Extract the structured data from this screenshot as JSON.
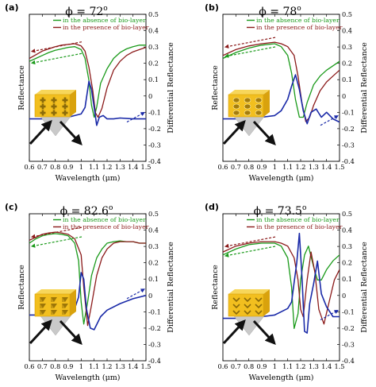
{
  "figure": {
    "panels": [
      {
        "label": "(a)",
        "title_base": "ϕ = 72",
        "title_sup": "o"
      },
      {
        "label": "(b)",
        "title_base": "ϕ = 78",
        "title_sup": "o"
      },
      {
        "label": "(c)",
        "title_base": "ϕ = 82.6",
        "title_sup": "o"
      },
      {
        "label": "(d)",
        "title_base": "ϕ = 73.5",
        "title_sup": "o"
      }
    ]
  },
  "colors": {
    "absence": "#1a9a1a",
    "presence": "#8b1a1a",
    "differential": "#1a2aa8"
  },
  "chart_data": [
    {
      "type": "line",
      "title": "ϕ = 72°",
      "xlabel": "Wavelength (μm)",
      "ylabel": "Reflectance",
      "y2label": "Differential Reflectance",
      "x_ticks": [
        "0.6",
        "0.7",
        "0.8",
        "0.9",
        "1",
        "1.1",
        "1.2",
        "1.3",
        "1.4",
        "1.5"
      ],
      "y2_ticks": [
        "-0.4",
        "-0.3",
        "-0.2",
        "-0.1",
        "0",
        "0.1",
        "0.2",
        "0.3",
        "0.4",
        "0.5"
      ],
      "xlim": [
        0.6,
        1.5
      ],
      "ylim": [
        0,
        1
      ],
      "y2lim": [
        -0.4,
        0.5
      ],
      "legend": [
        "in the absence of bio-layer",
        "in the presence of bio-layer"
      ],
      "series": [
        {
          "name": "in the absence of bio-layer",
          "axis": "left",
          "x": [
            0.6,
            0.65,
            0.7,
            0.75,
            0.8,
            0.85,
            0.9,
            0.95,
            1.0,
            1.03,
            1.06,
            1.08,
            1.1,
            1.12,
            1.15,
            1.2,
            1.25,
            1.3,
            1.35,
            1.4,
            1.45,
            1.5
          ],
          "y": [
            0.68,
            0.7,
            0.72,
            0.74,
            0.755,
            0.765,
            0.775,
            0.78,
            0.76,
            0.7,
            0.55,
            0.38,
            0.3,
            0.37,
            0.53,
            0.63,
            0.7,
            0.74,
            0.765,
            0.78,
            0.79,
            0.79
          ]
        },
        {
          "name": "in the presence of bio-layer",
          "axis": "left",
          "x": [
            0.6,
            0.65,
            0.7,
            0.75,
            0.8,
            0.85,
            0.9,
            0.95,
            1.0,
            1.03,
            1.06,
            1.09,
            1.11,
            1.13,
            1.16,
            1.2,
            1.25,
            1.3,
            1.35,
            1.4,
            1.45,
            1.5
          ],
          "y": [
            0.7,
            0.725,
            0.75,
            0.765,
            0.78,
            0.79,
            0.795,
            0.8,
            0.785,
            0.75,
            0.64,
            0.48,
            0.33,
            0.3,
            0.36,
            0.5,
            0.62,
            0.68,
            0.72,
            0.745,
            0.76,
            0.775
          ]
        },
        {
          "name": "Differential Reflectance",
          "axis": "right",
          "x": [
            0.6,
            0.7,
            0.8,
            0.9,
            0.95,
            1.0,
            1.03,
            1.06,
            1.08,
            1.1,
            1.12,
            1.14,
            1.17,
            1.2,
            1.25,
            1.3,
            1.4,
            1.5
          ],
          "y": [
            -0.14,
            -0.14,
            -0.135,
            -0.13,
            -0.12,
            -0.11,
            -0.07,
            0.09,
            0.04,
            -0.07,
            -0.18,
            -0.13,
            -0.12,
            -0.14,
            -0.14,
            -0.135,
            -0.14,
            -0.14
          ]
        }
      ]
    },
    {
      "type": "line",
      "title": "ϕ = 78°",
      "xlabel": "Wavelength (μm)",
      "ylabel": "Reflectance",
      "y2label": "Differential Reflectance",
      "x_ticks": [
        "0.6",
        "0.7",
        "0.8",
        "0.9",
        "1",
        "1.1",
        "1.2",
        "1.3",
        "1.4",
        "1.5"
      ],
      "y2_ticks": [
        "-0.4",
        "-0.3",
        "-0.2",
        "-0.1",
        "0",
        "0.1",
        "0.2",
        "0.3",
        "0.4",
        "0.5"
      ],
      "xlim": [
        0.6,
        1.5
      ],
      "ylim": [
        0,
        1
      ],
      "y2lim": [
        -0.4,
        0.5
      ],
      "legend": [
        "in the absence of bio-layer",
        "in the presence of bio-layer"
      ],
      "series": [
        {
          "name": "in the absence of bio-layer",
          "axis": "left",
          "x": [
            0.6,
            0.7,
            0.8,
            0.9,
            1.0,
            1.05,
            1.1,
            1.13,
            1.16,
            1.19,
            1.22,
            1.25,
            1.3,
            1.35,
            1.4,
            1.45,
            1.5
          ],
          "y": [
            0.7,
            0.74,
            0.77,
            0.79,
            0.8,
            0.78,
            0.72,
            0.6,
            0.42,
            0.3,
            0.3,
            0.4,
            0.52,
            0.58,
            0.62,
            0.65,
            0.68
          ]
        },
        {
          "name": "in the presence of bio-layer",
          "axis": "left",
          "x": [
            0.6,
            0.7,
            0.8,
            0.9,
            1.0,
            1.05,
            1.1,
            1.15,
            1.18,
            1.21,
            1.24,
            1.27,
            1.3,
            1.35,
            1.4,
            1.45,
            1.5
          ],
          "y": [
            0.72,
            0.76,
            0.785,
            0.8,
            0.81,
            0.8,
            0.78,
            0.72,
            0.58,
            0.4,
            0.27,
            0.3,
            0.38,
            0.48,
            0.54,
            0.58,
            0.62
          ]
        },
        {
          "name": "Differential Reflectance",
          "axis": "right",
          "x": [
            0.6,
            0.7,
            0.8,
            0.9,
            1.0,
            1.05,
            1.1,
            1.13,
            1.16,
            1.19,
            1.22,
            1.25,
            1.28,
            1.32,
            1.36,
            1.4,
            1.45,
            1.5
          ],
          "y": [
            -0.14,
            -0.14,
            -0.135,
            -0.13,
            -0.12,
            -0.09,
            -0.02,
            0.06,
            0.13,
            0.04,
            -0.09,
            -0.17,
            -0.1,
            -0.08,
            -0.13,
            -0.1,
            -0.14,
            -0.16
          ]
        }
      ]
    },
    {
      "type": "line",
      "title": "ϕ = 82.6°",
      "xlabel": "Wavelength (μm)",
      "ylabel": "Reflectance",
      "y2label": "Differential Reflectance",
      "x_ticks": [
        "0.6",
        "0.7",
        "0.8",
        "0.9",
        "1",
        "1.1",
        "1.2",
        "1.3",
        "1.4",
        "1.5"
      ],
      "y2_ticks": [
        "-0.4",
        "-0.3",
        "-0.2",
        "-0.1",
        "0",
        "0.1",
        "0.2",
        "0.3",
        "0.4",
        "0.5"
      ],
      "xlim": [
        0.6,
        1.5
      ],
      "ylim": [
        0,
        1
      ],
      "y2lim": [
        -0.4,
        0.5
      ],
      "legend": [
        "in the absence of bio-layer",
        "in the presence of bio-layer"
      ],
      "series": [
        {
          "name": "in the absence of bio-layer",
          "axis": "left",
          "x": [
            0.6,
            0.65,
            0.7,
            0.75,
            0.8,
            0.85,
            0.9,
            0.95,
            0.98,
            1.0,
            1.02,
            1.05,
            1.08,
            1.12,
            1.16,
            1.2,
            1.25,
            1.3,
            1.35,
            1.4,
            1.45,
            1.5
          ],
          "y": [
            0.8,
            0.83,
            0.85,
            0.86,
            0.865,
            0.86,
            0.85,
            0.8,
            0.68,
            0.4,
            0.25,
            0.4,
            0.58,
            0.7,
            0.76,
            0.8,
            0.81,
            0.815,
            0.81,
            0.81,
            0.8,
            0.8
          ]
        },
        {
          "name": "in the presence of bio-layer",
          "axis": "left",
          "x": [
            0.6,
            0.65,
            0.7,
            0.75,
            0.8,
            0.85,
            0.9,
            0.95,
            1.0,
            1.02,
            1.05,
            1.08,
            1.12,
            1.16,
            1.2,
            1.25,
            1.3,
            1.35,
            1.4,
            1.45,
            1.5
          ],
          "y": [
            0.82,
            0.84,
            0.86,
            0.87,
            0.875,
            0.87,
            0.86,
            0.83,
            0.72,
            0.5,
            0.24,
            0.38,
            0.58,
            0.7,
            0.76,
            0.8,
            0.81,
            0.81,
            0.81,
            0.8,
            0.8
          ]
        },
        {
          "name": "Differential Reflectance",
          "axis": "right",
          "x": [
            0.6,
            0.7,
            0.8,
            0.9,
            0.95,
            0.98,
            1.0,
            1.02,
            1.04,
            1.07,
            1.1,
            1.15,
            1.2,
            1.3,
            1.4,
            1.5
          ],
          "y": [
            -0.12,
            -0.12,
            -0.115,
            -0.11,
            -0.08,
            -0.01,
            0.14,
            0.1,
            -0.08,
            -0.2,
            -0.21,
            -0.13,
            -0.09,
            -0.05,
            -0.02,
            0.0
          ]
        }
      ]
    },
    {
      "type": "line",
      "title": "ϕ = 73.5°",
      "xlabel": "Wavelength (μm)",
      "ylabel": "Reflectance",
      "y2label": "Differential Reflectance",
      "x_ticks": [
        "0.6",
        "0.7",
        "0.8",
        "0.9",
        "1",
        "1.1",
        "1.2",
        "1.3",
        "1.4",
        "1.5"
      ],
      "y2_ticks": [
        "-0.4",
        "-0.3",
        "-0.2",
        "-0.1",
        "0",
        "0.1",
        "0.2",
        "0.3",
        "0.4",
        "0.5"
      ],
      "xlim": [
        0.6,
        1.5
      ],
      "ylim": [
        0,
        1
      ],
      "y2lim": [
        -0.4,
        0.5
      ],
      "legend": [
        "in the absence of bio-layer",
        "in the presence of bio-layer"
      ],
      "series": [
        {
          "name": "in the absence of bio-layer",
          "axis": "left",
          "x": [
            0.6,
            0.7,
            0.8,
            0.9,
            1.0,
            1.05,
            1.1,
            1.13,
            1.15,
            1.18,
            1.2,
            1.23,
            1.26,
            1.3,
            1.33,
            1.36,
            1.4,
            1.45,
            1.5
          ],
          "y": [
            0.72,
            0.76,
            0.79,
            0.8,
            0.8,
            0.78,
            0.7,
            0.5,
            0.22,
            0.32,
            0.55,
            0.72,
            0.78,
            0.64,
            0.55,
            0.55,
            0.62,
            0.68,
            0.72
          ]
        },
        {
          "name": "in the presence of bio-layer",
          "axis": "left",
          "x": [
            0.6,
            0.7,
            0.8,
            0.9,
            1.0,
            1.05,
            1.1,
            1.15,
            1.18,
            1.2,
            1.22,
            1.25,
            1.28,
            1.31,
            1.34,
            1.38,
            1.42,
            1.46,
            1.5
          ],
          "y": [
            0.74,
            0.78,
            0.8,
            0.81,
            0.81,
            0.8,
            0.78,
            0.7,
            0.55,
            0.35,
            0.3,
            0.55,
            0.74,
            0.6,
            0.35,
            0.25,
            0.4,
            0.55,
            0.62
          ]
        },
        {
          "name": "Differential Reflectance",
          "axis": "right",
          "x": [
            0.6,
            0.7,
            0.8,
            0.9,
            1.0,
            1.05,
            1.1,
            1.13,
            1.15,
            1.17,
            1.19,
            1.21,
            1.23,
            1.25,
            1.27,
            1.3,
            1.33,
            1.36,
            1.4,
            1.45,
            1.5
          ],
          "y": [
            -0.14,
            -0.14,
            -0.135,
            -0.13,
            -0.12,
            -0.1,
            -0.08,
            -0.04,
            0.08,
            0.2,
            0.38,
            0.12,
            -0.22,
            -0.23,
            -0.05,
            0.07,
            0.21,
            0.01,
            -0.07,
            -0.13,
            -0.13
          ]
        }
      ]
    }
  ]
}
